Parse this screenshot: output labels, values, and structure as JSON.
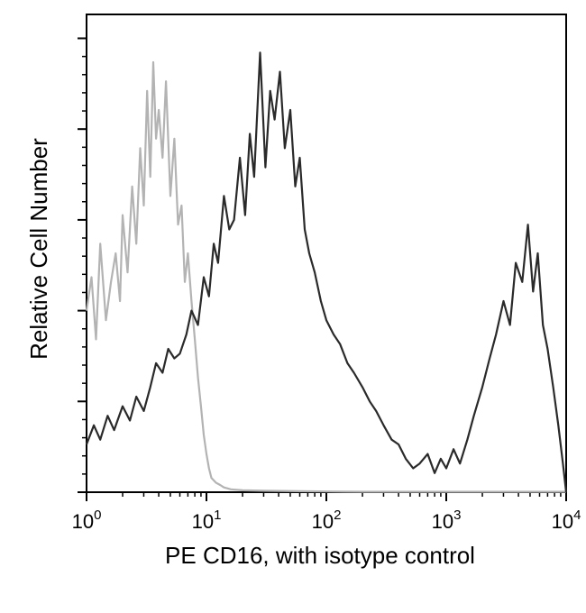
{
  "chart_data": {
    "type": "line",
    "title": "",
    "xlabel": "PE CD16, with isotype control",
    "ylabel": "Relative Cell Number",
    "x_scale": "log",
    "xlim": [
      1,
      10000
    ],
    "ylim": [
      0,
      100
    ],
    "grid": false,
    "legend": "none",
    "x_ticks": [
      {
        "base": "10",
        "exp": "0",
        "value": 1
      },
      {
        "base": "10",
        "exp": "1",
        "value": 10
      },
      {
        "base": "10",
        "exp": "2",
        "value": 100
      },
      {
        "base": "10",
        "exp": "3",
        "value": 1000
      },
      {
        "base": "10",
        "exp": "4",
        "value": 10000
      }
    ],
    "y_ticks": [
      0,
      19,
      38,
      57,
      76,
      95
    ],
    "series": [
      {
        "color": "#b3b3b3",
        "x": [
          1.0,
          1.1,
          1.2,
          1.3,
          1.45,
          1.6,
          1.75,
          1.9,
          2.0,
          2.2,
          2.4,
          2.6,
          2.8,
          3.0,
          3.2,
          3.4,
          3.6,
          3.8,
          4.0,
          4.3,
          4.6,
          5.0,
          5.4,
          5.8,
          6.2,
          6.6,
          7.0,
          7.5,
          8.0,
          8.5,
          9.0,
          9.5,
          10,
          10.5,
          11,
          12,
          13,
          14,
          16,
          20,
          30,
          60,
          100,
          200,
          500,
          1000,
          3000,
          10000
        ],
        "y": [
          38,
          45,
          32,
          52,
          36,
          44,
          50,
          40,
          58,
          46,
          64,
          52,
          72,
          60,
          84,
          66,
          90,
          74,
          80,
          70,
          86,
          62,
          74,
          56,
          60,
          44,
          50,
          40,
          32,
          24,
          18,
          12,
          8,
          5,
          3,
          2,
          1.5,
          1,
          0.6,
          0.4,
          0.3,
          0.2,
          0.15,
          0.1,
          0.1,
          0.1,
          0.1,
          0.1
        ]
      },
      {
        "color": "#2a2a2a",
        "x": [
          1.0,
          1.15,
          1.3,
          1.5,
          1.7,
          2.0,
          2.3,
          2.6,
          3.0,
          3.4,
          3.8,
          4.3,
          4.8,
          5.4,
          6.0,
          6.8,
          7.5,
          8.5,
          9.5,
          10.5,
          11.5,
          12.5,
          14,
          15.5,
          17,
          19,
          21,
          23,
          25,
          28,
          31,
          34,
          37,
          41,
          45,
          50,
          55,
          60,
          66,
          72,
          80,
          90,
          100,
          115,
          130,
          150,
          170,
          200,
          230,
          260,
          300,
          350,
          400,
          460,
          530,
          600,
          700,
          800,
          900,
          1000,
          1150,
          1300,
          1500,
          1700,
          2000,
          2300,
          2600,
          3000,
          3400,
          3800,
          4300,
          4800,
          5300,
          5800,
          6400,
          7000,
          7800,
          8600,
          9400,
          10000
        ],
        "y": [
          10,
          14,
          11,
          16,
          13,
          18,
          15,
          20,
          17,
          22,
          27,
          25,
          30,
          28,
          29,
          33,
          38,
          35,
          45,
          41,
          52,
          48,
          62,
          55,
          57,
          70,
          58,
          75,
          66,
          92,
          68,
          84,
          78,
          88,
          72,
          80,
          64,
          70,
          55,
          50,
          46,
          40,
          36,
          33,
          31,
          27,
          25,
          22,
          19,
          17,
          14,
          11,
          10,
          7,
          5,
          6,
          8,
          4,
          7,
          5,
          9,
          6,
          11,
          16,
          22,
          28,
          33,
          40,
          35,
          48,
          44,
          56,
          42,
          50,
          35,
          30,
          22,
          14,
          6,
          0
        ]
      }
    ]
  }
}
